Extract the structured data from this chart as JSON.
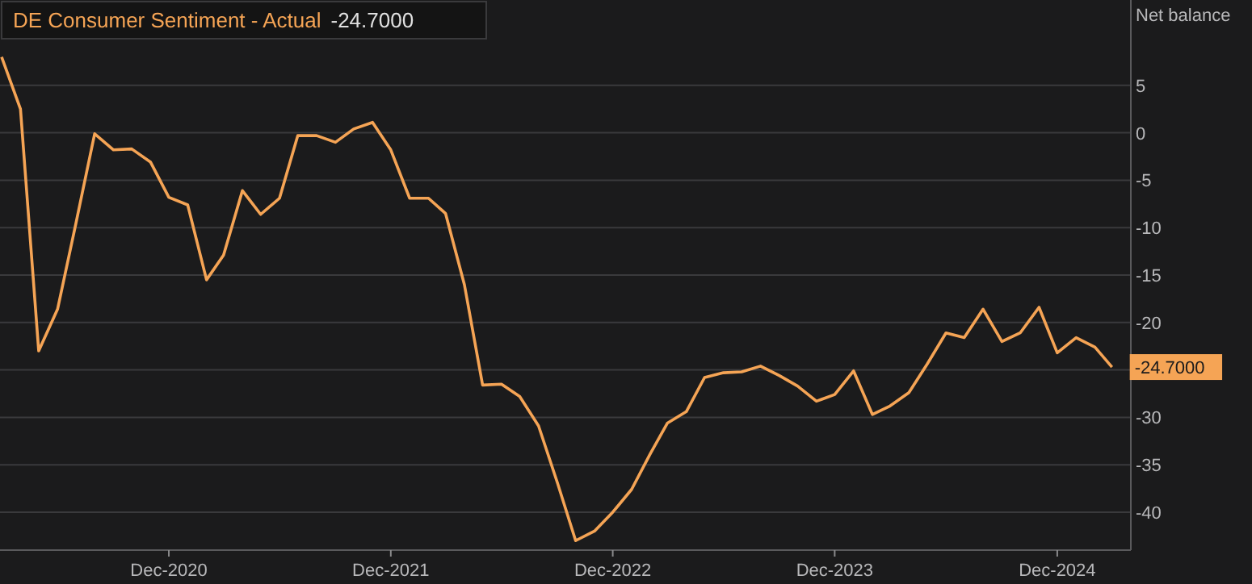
{
  "chart_data": {
    "type": "line",
    "title": "DE Consumer Sentiment - Actual",
    "subtitle": "-24.7000",
    "ylabel": "Net balance",
    "x": [
      "2020-03",
      "2020-04",
      "2020-05",
      "2020-06",
      "2020-07",
      "2020-08",
      "2020-09",
      "2020-10",
      "2020-11",
      "2020-12",
      "2021-01",
      "2021-02",
      "2021-03",
      "2021-04",
      "2021-05",
      "2021-06",
      "2021-07",
      "2021-08",
      "2021-09",
      "2021-10",
      "2021-11",
      "2021-12",
      "2022-01",
      "2022-02",
      "2022-03",
      "2022-04",
      "2022-05",
      "2022-06",
      "2022-07",
      "2022-08",
      "2022-09",
      "2022-10",
      "2022-11",
      "2022-12",
      "2023-01",
      "2023-02",
      "2023-03",
      "2023-04",
      "2023-05",
      "2023-06",
      "2023-07",
      "2023-08",
      "2023-09",
      "2023-10",
      "2023-11",
      "2023-12",
      "2024-01",
      "2024-02",
      "2024-03",
      "2024-04",
      "2024-05",
      "2024-06",
      "2024-07",
      "2024-08",
      "2024-09",
      "2024-10",
      "2024-11",
      "2024-12",
      "2025-01",
      "2025-02",
      "2025-03"
    ],
    "series": [
      {
        "color": "#f5a455",
        "values": [
          8.0,
          2.5,
          -23,
          -18.6,
          -9.6,
          -0.1,
          -1.8,
          -1.7,
          -3.1,
          -6.8,
          -7.6,
          -15.5,
          -12.9,
          -6.1,
          -8.6,
          -6.9,
          -0.3,
          -0.3,
          -1.0,
          0.4,
          1.1,
          -1.8,
          -6.9,
          -6.9,
          -8.5,
          -16,
          -26.6,
          -26.5,
          -27.8,
          -30.9,
          -36.9,
          -43,
          -42,
          -40,
          -37.6,
          -33.8,
          -30.6,
          -29.4,
          -25.8,
          -25.3,
          -25.2,
          -24.6,
          -25.6,
          -26.7,
          -28.3,
          -27.6,
          -25.1,
          -29.7,
          -28.8,
          -27.4,
          -24.4,
          -21.1,
          -21.6,
          -18.6,
          -22.0,
          -21.1,
          -18.4,
          -23.2,
          -21.6,
          -22.6,
          -24.7
        ]
      }
    ],
    "xlim": [
      "2020-03",
      "2025-04"
    ],
    "xticks": [
      {
        "value": "2020-12",
        "label": "Dec-2020"
      },
      {
        "value": "2021-12",
        "label": "Dec-2021"
      },
      {
        "value": "2022-12",
        "label": "Dec-2022"
      },
      {
        "value": "2023-12",
        "label": "Dec-2023"
      },
      {
        "value": "2024-12",
        "label": "Dec-2024"
      }
    ],
    "ylim": [
      -44,
      14
    ],
    "yticks": [
      5,
      0,
      -5,
      -10,
      -15,
      -20,
      {
        "value": -25,
        "label": null
      },
      -30,
      -35,
      -40
    ],
    "grid": "y",
    "marker": "none",
    "line_style": "solid",
    "annotations": [
      {
        "text": "-24.7000",
        "x": "2025-03",
        "y": -24.7
      }
    ]
  }
}
